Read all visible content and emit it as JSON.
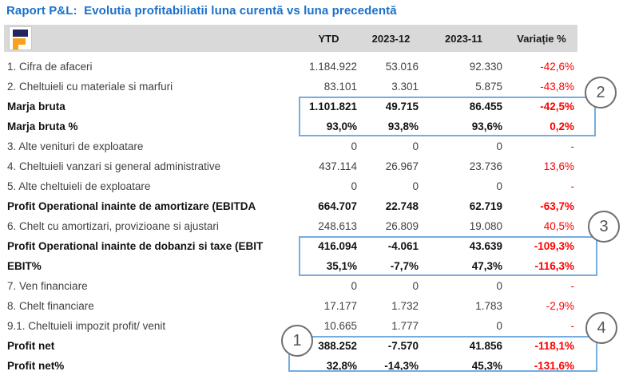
{
  "page": {
    "title": "Raport P&L:  Evolutia profitabiliatii luna curentă vs luna precedentă"
  },
  "colors": {
    "title_blue": "#1B70C8",
    "negative_red": "#FF0000",
    "highlight_box_blue": "#74ADDE",
    "header_gray": "#D9D9D9",
    "logo_navy": "#23235F",
    "logo_orange": "#F9A11B"
  },
  "logo": {
    "icon": "company-logo-F"
  },
  "table": {
    "headers": {
      "ytd": "YTD",
      "m12": "2023-12",
      "m11": "2023-11",
      "variatie": "Variație %"
    },
    "rows": [
      {
        "label": "1. Cifra de afaceri",
        "ytd": "1.184.922",
        "m12": "53.016",
        "m11": "92.330",
        "variatie": "-42,6%",
        "bold": false
      },
      {
        "label": "2. Cheltuieli cu materiale si marfuri",
        "ytd": "83.101",
        "m12": "3.301",
        "m11": "5.875",
        "variatie": "-43,8%",
        "bold": false
      },
      {
        "label": "Marja bruta",
        "ytd": "1.101.821",
        "m12": "49.715",
        "m11": "86.455",
        "variatie": "-42,5%",
        "bold": true
      },
      {
        "label": "Marja bruta %",
        "ytd": "93,0%",
        "m12": "93,8%",
        "m11": "93,6%",
        "variatie": "0,2%",
        "bold": true
      },
      {
        "label": "3. Alte venituri de exploatare",
        "ytd": "0",
        "m12": "0",
        "m11": "0",
        "variatie": "-",
        "bold": false
      },
      {
        "label": "4. Cheltuieli vanzari si general administrative",
        "ytd": "437.114",
        "m12": "26.967",
        "m11": "23.736",
        "variatie": "13,6%",
        "bold": false
      },
      {
        "label": "5. Alte cheltuieli de exploatare",
        "ytd": "0",
        "m12": "0",
        "m11": "0",
        "variatie": "-",
        "bold": false
      },
      {
        "label": "Profit Operational inainte de amortizare (EBITDA",
        "ytd": "664.707",
        "m12": "22.748",
        "m11": "62.719",
        "variatie": "-63,7%",
        "bold": true
      },
      {
        "label": "6. Chelt cu amortizari, provizioane si ajustari",
        "ytd": "248.613",
        "m12": "26.809",
        "m11": "19.080",
        "variatie": "40,5%",
        "bold": false
      },
      {
        "label": "Profit Operational inainte de dobanzi si taxe (EBIT",
        "ytd": "416.094",
        "m12": "-4.061",
        "m11": "43.639",
        "variatie": "-109,3%",
        "bold": true
      },
      {
        "label": "EBIT%",
        "ytd": "35,1%",
        "m12": "-7,7%",
        "m11": "47,3%",
        "variatie": "-116,3%",
        "bold": true
      },
      {
        "label": "7. Ven financiare",
        "ytd": "0",
        "m12": "0",
        "m11": "0",
        "variatie": "-",
        "bold": false
      },
      {
        "label": "8. Chelt financiare",
        "ytd": "17.177",
        "m12": "1.732",
        "m11": "1.783",
        "variatie": "-2,9%",
        "bold": false
      },
      {
        "label": "9.1. Cheltuieli impozit profit/ venit",
        "ytd": "10.665",
        "m12": "1.777",
        "m11": "0",
        "variatie": "-",
        "bold": false
      },
      {
        "label": "Profit net",
        "ytd": "388.252",
        "m12": "-7.570",
        "m11": "41.856",
        "variatie": "-118,1%",
        "bold": true
      },
      {
        "label": "Profit net%",
        "ytd": "32,8%",
        "m12": "-14,3%",
        "m11": "45,3%",
        "variatie": "-131,6%",
        "bold": true
      }
    ]
  },
  "callouts": [
    {
      "label": "1"
    },
    {
      "label": "2"
    },
    {
      "label": "3"
    },
    {
      "label": "4"
    }
  ]
}
